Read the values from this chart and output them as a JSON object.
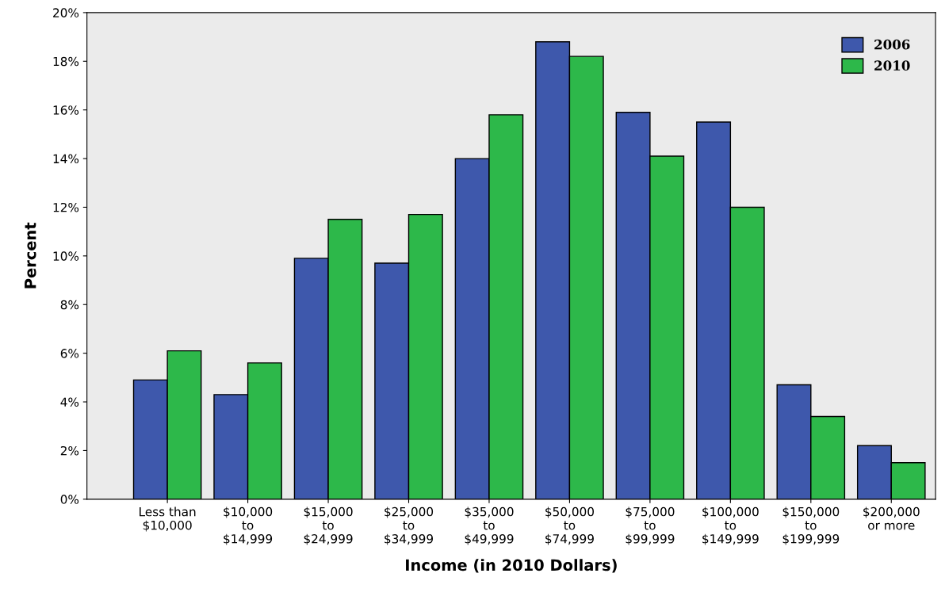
{
  "chart_data": {
    "type": "bar",
    "xlabel": "Income (in 2010 Dollars)",
    "ylabel": "Percent",
    "categories": [
      "Less than\n$10,000",
      "$10,000\nto\n$14,999",
      "$15,000\nto\n$24,999",
      "$25,000\nto\n$34,999",
      "$35,000\nto\n$49,999",
      "$50,000\nto\n$74,999",
      "$75,000\nto\n$99,999",
      "$100,000\nto\n$149,999",
      "$150,000\nto\n$199,999",
      "$200,000\nor more"
    ],
    "series": [
      {
        "name": "2006",
        "color": "#3e58ac",
        "values": [
          4.9,
          4.3,
          9.9,
          9.7,
          14.0,
          18.8,
          15.9,
          15.5,
          4.7,
          2.2
        ]
      },
      {
        "name": "2010",
        "color": "#2db84a",
        "values": [
          6.1,
          5.6,
          11.5,
          11.7,
          15.8,
          18.2,
          14.1,
          12.0,
          3.4,
          1.5
        ]
      }
    ],
    "ylim": [
      0,
      20
    ],
    "yticks": [
      {
        "value": 0,
        "label": "0%"
      },
      {
        "value": 2,
        "label": "2%"
      },
      {
        "value": 4,
        "label": "4%"
      },
      {
        "value": 6,
        "label": "6%"
      },
      {
        "value": 8,
        "label": "8%"
      },
      {
        "value": 10,
        "label": "10%"
      },
      {
        "value": 12,
        "label": "12%"
      },
      {
        "value": 14,
        "label": "14%"
      },
      {
        "value": 16,
        "label": "16%"
      },
      {
        "value": 18,
        "label": "18%"
      },
      {
        "value": 20,
        "label": "20%"
      }
    ],
    "legend": "top right",
    "grid": false
  }
}
